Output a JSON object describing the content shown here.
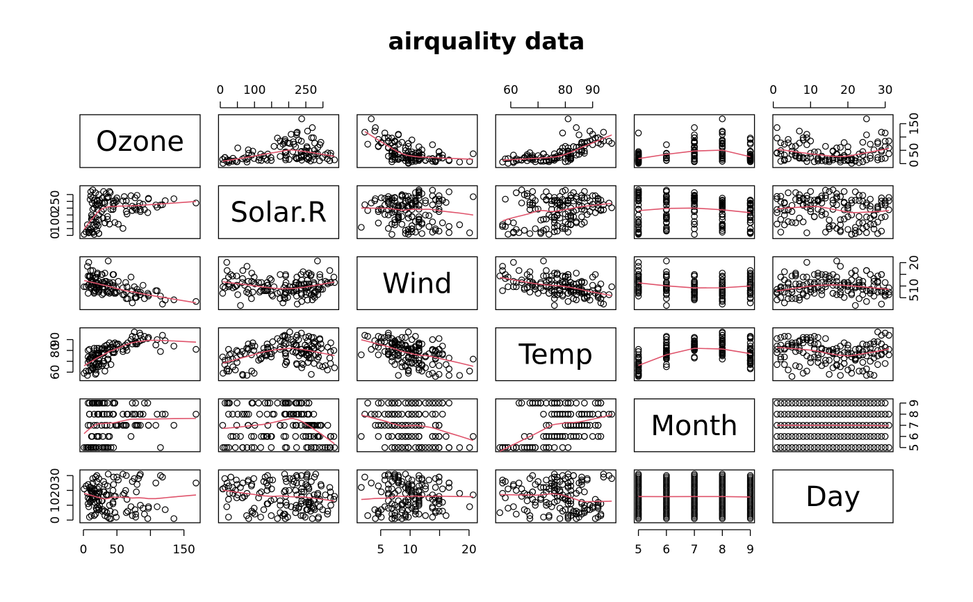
{
  "chart_data": {
    "type": "scatter",
    "title": "airquality data",
    "variables": [
      {
        "name": "Ozone",
        "range": [
          1,
          168
        ],
        "ticks": [
          0,
          50,
          100,
          150
        ],
        "tick_labels": [
          "0",
          "50",
          "",
          "150"
        ]
      },
      {
        "name": "Solar.R",
        "range": [
          7,
          334
        ],
        "ticks": [
          0,
          50,
          100,
          150,
          200,
          250,
          300
        ],
        "tick_labels": [
          "0",
          "",
          "100",
          "",
          "",
          "250",
          ""
        ]
      },
      {
        "name": "Wind",
        "range": [
          1.7,
          20.7
        ],
        "ticks": [
          5,
          10,
          15,
          20
        ],
        "tick_labels": [
          "5",
          "10",
          "",
          "20"
        ]
      },
      {
        "name": "Temp",
        "range": [
          56,
          97
        ],
        "ticks": [
          60,
          70,
          80,
          90
        ],
        "tick_labels": [
          "60",
          "",
          "80",
          "90"
        ]
      },
      {
        "name": "Month",
        "range": [
          5,
          9
        ],
        "ticks": [
          5,
          6,
          7,
          8,
          9
        ],
        "tick_labels": [
          "5",
          "6",
          "7",
          "8",
          "9"
        ]
      },
      {
        "name": "Day",
        "range": [
          1,
          31
        ],
        "ticks": [
          0,
          10,
          20,
          30
        ],
        "tick_labels": [
          "0",
          "10",
          "20",
          "30"
        ]
      }
    ],
    "axis_labels": {
      "top": [
        "",
        "0|100|250",
        "",
        "60|80",
        "",
        "0|10|20|30"
      ],
      "bottom": [
        "0|50|150",
        "",
        "5|10|20",
        "",
        "5|6|7|8|9",
        ""
      ],
      "left": [
        "",
        "0|250",
        "",
        "60|90",
        "",
        "0|20"
      ],
      "right": [
        "0|150",
        "",
        "5|20",
        "",
        "5|7|9",
        ""
      ]
    },
    "smoother_color": "#DF536B",
    "point_color": "#000000",
    "observations": [
      [
        41,
        190,
        7.4,
        67,
        5,
        1
      ],
      [
        36,
        118,
        8.0,
        72,
        5,
        2
      ],
      [
        12,
        149,
        12.6,
        74,
        5,
        3
      ],
      [
        18,
        313,
        11.5,
        62,
        5,
        4
      ],
      [
        null,
        null,
        14.3,
        56,
        5,
        5
      ],
      [
        28,
        null,
        14.9,
        66,
        5,
        6
      ],
      [
        23,
        299,
        8.6,
        65,
        5,
        7
      ],
      [
        19,
        99,
        13.8,
        59,
        5,
        8
      ],
      [
        8,
        19,
        20.1,
        61,
        5,
        9
      ],
      [
        null,
        194,
        8.6,
        69,
        5,
        10
      ],
      [
        7,
        null,
        6.9,
        74,
        5,
        11
      ],
      [
        16,
        256,
        9.7,
        69,
        5,
        12
      ],
      [
        11,
        290,
        9.2,
        66,
        5,
        13
      ],
      [
        14,
        274,
        10.9,
        68,
        5,
        14
      ],
      [
        18,
        65,
        13.2,
        58,
        5,
        15
      ],
      [
        14,
        334,
        11.5,
        64,
        5,
        16
      ],
      [
        34,
        307,
        12.0,
        66,
        5,
        17
      ],
      [
        6,
        78,
        18.4,
        57,
        5,
        18
      ],
      [
        30,
        322,
        11.5,
        68,
        5,
        19
      ],
      [
        11,
        44,
        9.7,
        62,
        5,
        20
      ],
      [
        1,
        8,
        9.7,
        59,
        5,
        21
      ],
      [
        11,
        320,
        16.6,
        73,
        5,
        22
      ],
      [
        4,
        25,
        9.7,
        61,
        5,
        23
      ],
      [
        32,
        92,
        12.0,
        61,
        5,
        24
      ],
      [
        null,
        66,
        16.6,
        57,
        5,
        25
      ],
      [
        null,
        266,
        14.9,
        58,
        5,
        26
      ],
      [
        null,
        null,
        8.0,
        57,
        5,
        27
      ],
      [
        23,
        13,
        12.0,
        67,
        5,
        28
      ],
      [
        45,
        252,
        14.9,
        81,
        5,
        29
      ],
      [
        115,
        223,
        5.7,
        79,
        5,
        30
      ],
      [
        37,
        279,
        7.4,
        76,
        5,
        31
      ],
      [
        null,
        286,
        8.6,
        78,
        6,
        1
      ],
      [
        null,
        287,
        9.7,
        74,
        6,
        2
      ],
      [
        null,
        242,
        16.1,
        67,
        6,
        3
      ],
      [
        null,
        186,
        9.2,
        84,
        6,
        4
      ],
      [
        null,
        220,
        8.6,
        85,
        6,
        5
      ],
      [
        null,
        264,
        14.3,
        79,
        6,
        6
      ],
      [
        29,
        127,
        9.7,
        82,
        6,
        7
      ],
      [
        null,
        273,
        6.9,
        87,
        6,
        8
      ],
      [
        71,
        291,
        13.8,
        90,
        6,
        9
      ],
      [
        39,
        323,
        11.5,
        87,
        6,
        10
      ],
      [
        null,
        259,
        10.9,
        93,
        6,
        11
      ],
      [
        null,
        250,
        9.2,
        92,
        6,
        12
      ],
      [
        23,
        148,
        8.0,
        82,
        6,
        13
      ],
      [
        null,
        332,
        13.8,
        80,
        6,
        14
      ],
      [
        null,
        322,
        11.5,
        79,
        6,
        15
      ],
      [
        21,
        191,
        14.9,
        77,
        6,
        16
      ],
      [
        37,
        284,
        20.7,
        72,
        6,
        17
      ],
      [
        20,
        37,
        9.2,
        65,
        6,
        18
      ],
      [
        12,
        120,
        11.5,
        73,
        6,
        19
      ],
      [
        13,
        137,
        10.3,
        76,
        6,
        20
      ],
      [
        null,
        150,
        6.3,
        77,
        6,
        21
      ],
      [
        null,
        59,
        1.7,
        76,
        6,
        22
      ],
      [
        null,
        91,
        4.6,
        76,
        6,
        23
      ],
      [
        null,
        250,
        6.3,
        76,
        6,
        24
      ],
      [
        null,
        135,
        8.0,
        75,
        6,
        25
      ],
      [
        null,
        127,
        8.0,
        78,
        6,
        26
      ],
      [
        null,
        47,
        10.3,
        73,
        6,
        27
      ],
      [
        null,
        98,
        11.5,
        80,
        6,
        28
      ],
      [
        null,
        31,
        14.9,
        77,
        6,
        29
      ],
      [
        null,
        138,
        8.0,
        83,
        6,
        30
      ],
      [
        135,
        269,
        4.1,
        84,
        7,
        1
      ],
      [
        49,
        248,
        9.2,
        85,
        7,
        2
      ],
      [
        32,
        236,
        9.2,
        81,
        7,
        3
      ],
      [
        null,
        101,
        10.9,
        84,
        7,
        4
      ],
      [
        64,
        175,
        4.6,
        83,
        7,
        5
      ],
      [
        40,
        314,
        10.9,
        83,
        7,
        6
      ],
      [
        77,
        276,
        5.1,
        88,
        7,
        7
      ],
      [
        97,
        267,
        6.3,
        92,
        7,
        8
      ],
      [
        97,
        272,
        5.7,
        92,
        7,
        9
      ],
      [
        85,
        175,
        7.4,
        89,
        7,
        10
      ],
      [
        null,
        139,
        8.6,
        82,
        7,
        11
      ],
      [
        10,
        264,
        14.3,
        73,
        7,
        12
      ],
      [
        27,
        175,
        14.9,
        81,
        7,
        13
      ],
      [
        null,
        291,
        14.9,
        91,
        7,
        14
      ],
      [
        7,
        48,
        14.3,
        80,
        7,
        15
      ],
      [
        48,
        260,
        6.9,
        81,
        7,
        16
      ],
      [
        35,
        274,
        10.3,
        82,
        7,
        17
      ],
      [
        61,
        285,
        6.3,
        84,
        7,
        18
      ],
      [
        79,
        187,
        5.1,
        87,
        7,
        19
      ],
      [
        63,
        220,
        11.5,
        85,
        7,
        20
      ],
      [
        16,
        7,
        6.9,
        74,
        7,
        21
      ],
      [
        null,
        258,
        9.7,
        81,
        7,
        22
      ],
      [
        null,
        295,
        11.5,
        82,
        7,
        23
      ],
      [
        80,
        294,
        8.6,
        86,
        7,
        24
      ],
      [
        108,
        223,
        8.0,
        85,
        7,
        25
      ],
      [
        20,
        81,
        8.6,
        82,
        7,
        26
      ],
      [
        52,
        82,
        12.0,
        86,
        7,
        27
      ],
      [
        82,
        213,
        7.4,
        88,
        7,
        28
      ],
      [
        50,
        275,
        7.4,
        86,
        7,
        29
      ],
      [
        64,
        253,
        7.4,
        83,
        7,
        30
      ],
      [
        59,
        254,
        9.2,
        81,
        7,
        31
      ],
      [
        39,
        83,
        6.9,
        81,
        8,
        1
      ],
      [
        9,
        24,
        13.8,
        81,
        8,
        2
      ],
      [
        16,
        77,
        7.4,
        82,
        8,
        3
      ],
      [
        78,
        null,
        6.9,
        86,
        8,
        4
      ],
      [
        35,
        null,
        7.4,
        85,
        8,
        5
      ],
      [
        66,
        null,
        4.6,
        87,
        8,
        6
      ],
      [
        122,
        255,
        4.0,
        89,
        8,
        7
      ],
      [
        89,
        229,
        10.3,
        90,
        8,
        8
      ],
      [
        110,
        207,
        8.0,
        90,
        8,
        9
      ],
      [
        null,
        222,
        8.6,
        92,
        8,
        10
      ],
      [
        null,
        137,
        11.5,
        86,
        8,
        11
      ],
      [
        44,
        192,
        11.5,
        86,
        8,
        12
      ],
      [
        28,
        273,
        11.5,
        82,
        8,
        13
      ],
      [
        65,
        157,
        9.7,
        80,
        8,
        14
      ],
      [
        null,
        64,
        11.5,
        79,
        8,
        15
      ],
      [
        22,
        71,
        10.3,
        77,
        8,
        16
      ],
      [
        59,
        51,
        6.3,
        79,
        8,
        17
      ],
      [
        23,
        115,
        7.4,
        76,
        8,
        18
      ],
      [
        31,
        244,
        10.9,
        78,
        8,
        19
      ],
      [
        44,
        190,
        10.3,
        78,
        8,
        20
      ],
      [
        21,
        259,
        15.5,
        77,
        8,
        21
      ],
      [
        9,
        36,
        14.3,
        72,
        8,
        22
      ],
      [
        null,
        255,
        12.6,
        75,
        8,
        23
      ],
      [
        45,
        212,
        9.7,
        79,
        8,
        24
      ],
      [
        168,
        238,
        3.4,
        81,
        8,
        25
      ],
      [
        73,
        215,
        8.0,
        86,
        8,
        26
      ],
      [
        null,
        153,
        5.7,
        88,
        8,
        27
      ],
      [
        76,
        203,
        9.7,
        97,
        8,
        28
      ],
      [
        118,
        225,
        2.3,
        94,
        8,
        29
      ],
      [
        84,
        237,
        6.3,
        96,
        8,
        30
      ],
      [
        85,
        188,
        6.3,
        94,
        8,
        31
      ],
      [
        96,
        167,
        6.9,
        91,
        9,
        1
      ],
      [
        78,
        197,
        5.1,
        92,
        9,
        2
      ],
      [
        73,
        183,
        2.8,
        93,
        9,
        3
      ],
      [
        91,
        189,
        4.6,
        93,
        9,
        4
      ],
      [
        47,
        95,
        7.4,
        87,
        9,
        5
      ],
      [
        32,
        92,
        15.5,
        84,
        9,
        6
      ],
      [
        20,
        252,
        10.9,
        80,
        9,
        7
      ],
      [
        23,
        220,
        10.3,
        78,
        9,
        8
      ],
      [
        21,
        230,
        10.9,
        75,
        9,
        9
      ],
      [
        24,
        259,
        9.7,
        73,
        9,
        10
      ],
      [
        44,
        236,
        14.9,
        81,
        9,
        11
      ],
      [
        21,
        259,
        15.5,
        76,
        9,
        12
      ],
      [
        28,
        238,
        6.3,
        77,
        9,
        13
      ],
      [
        9,
        24,
        10.9,
        71,
        9,
        14
      ],
      [
        13,
        112,
        11.5,
        71,
        9,
        15
      ],
      [
        46,
        237,
        6.9,
        78,
        9,
        16
      ],
      [
        18,
        224,
        13.8,
        67,
        9,
        17
      ],
      [
        13,
        27,
        10.3,
        76,
        9,
        18
      ],
      [
        24,
        238,
        10.3,
        68,
        9,
        19
      ],
      [
        16,
        201,
        8.0,
        82,
        9,
        20
      ],
      [
        13,
        238,
        12.6,
        64,
        9,
        21
      ],
      [
        23,
        14,
        9.2,
        71,
        9,
        22
      ],
      [
        36,
        139,
        10.3,
        81,
        9,
        23
      ],
      [
        7,
        49,
        10.3,
        69,
        9,
        24
      ],
      [
        14,
        20,
        16.6,
        63,
        9,
        25
      ],
      [
        30,
        193,
        6.9,
        70,
        9,
        26
      ],
      [
        null,
        145,
        13.2,
        77,
        9,
        27
      ],
      [
        14,
        191,
        14.3,
        75,
        9,
        28
      ],
      [
        18,
        131,
        8.0,
        76,
        9,
        29
      ],
      [
        20,
        223,
        11.5,
        68,
        9,
        30
      ]
    ]
  }
}
